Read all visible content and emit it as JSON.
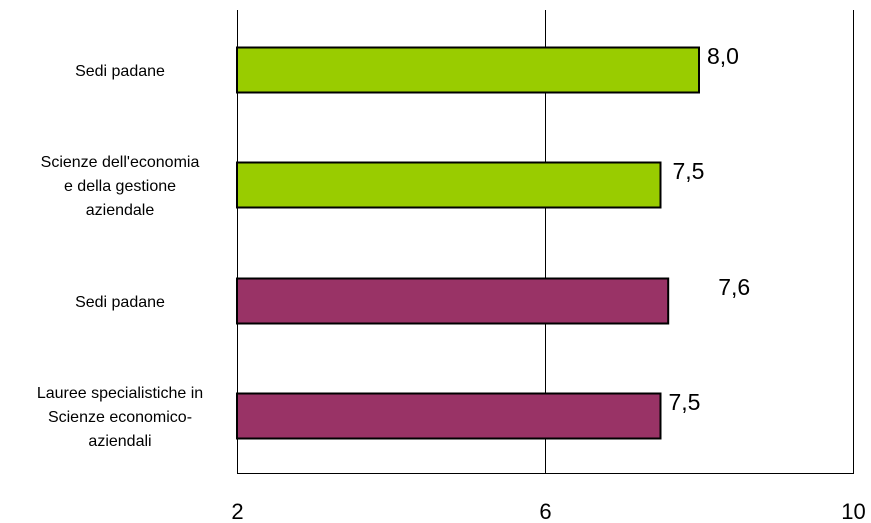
{
  "chart_data": {
    "type": "bar",
    "orientation": "horizontal",
    "categories": [
      [
        "Sedi padane"
      ],
      [
        "Scienze dell'economia",
        "e della gestione",
        "aziendale"
      ],
      [
        "Sedi padane"
      ],
      [
        "Lauree specialistiche in",
        "Scienze economico-",
        "aziendali"
      ]
    ],
    "values": [
      8.0,
      7.5,
      7.6,
      7.5
    ],
    "value_labels": [
      "8,0",
      "7,5",
      "7,6",
      "7,5"
    ],
    "bar_colors": [
      "#99CC00",
      "#99CC00",
      "#993366",
      "#993366"
    ],
    "xlim": [
      2,
      10
    ],
    "xticks": [
      "2",
      "6",
      "10"
    ],
    "grid": true,
    "title": "",
    "xlabel": "",
    "ylabel": ""
  }
}
